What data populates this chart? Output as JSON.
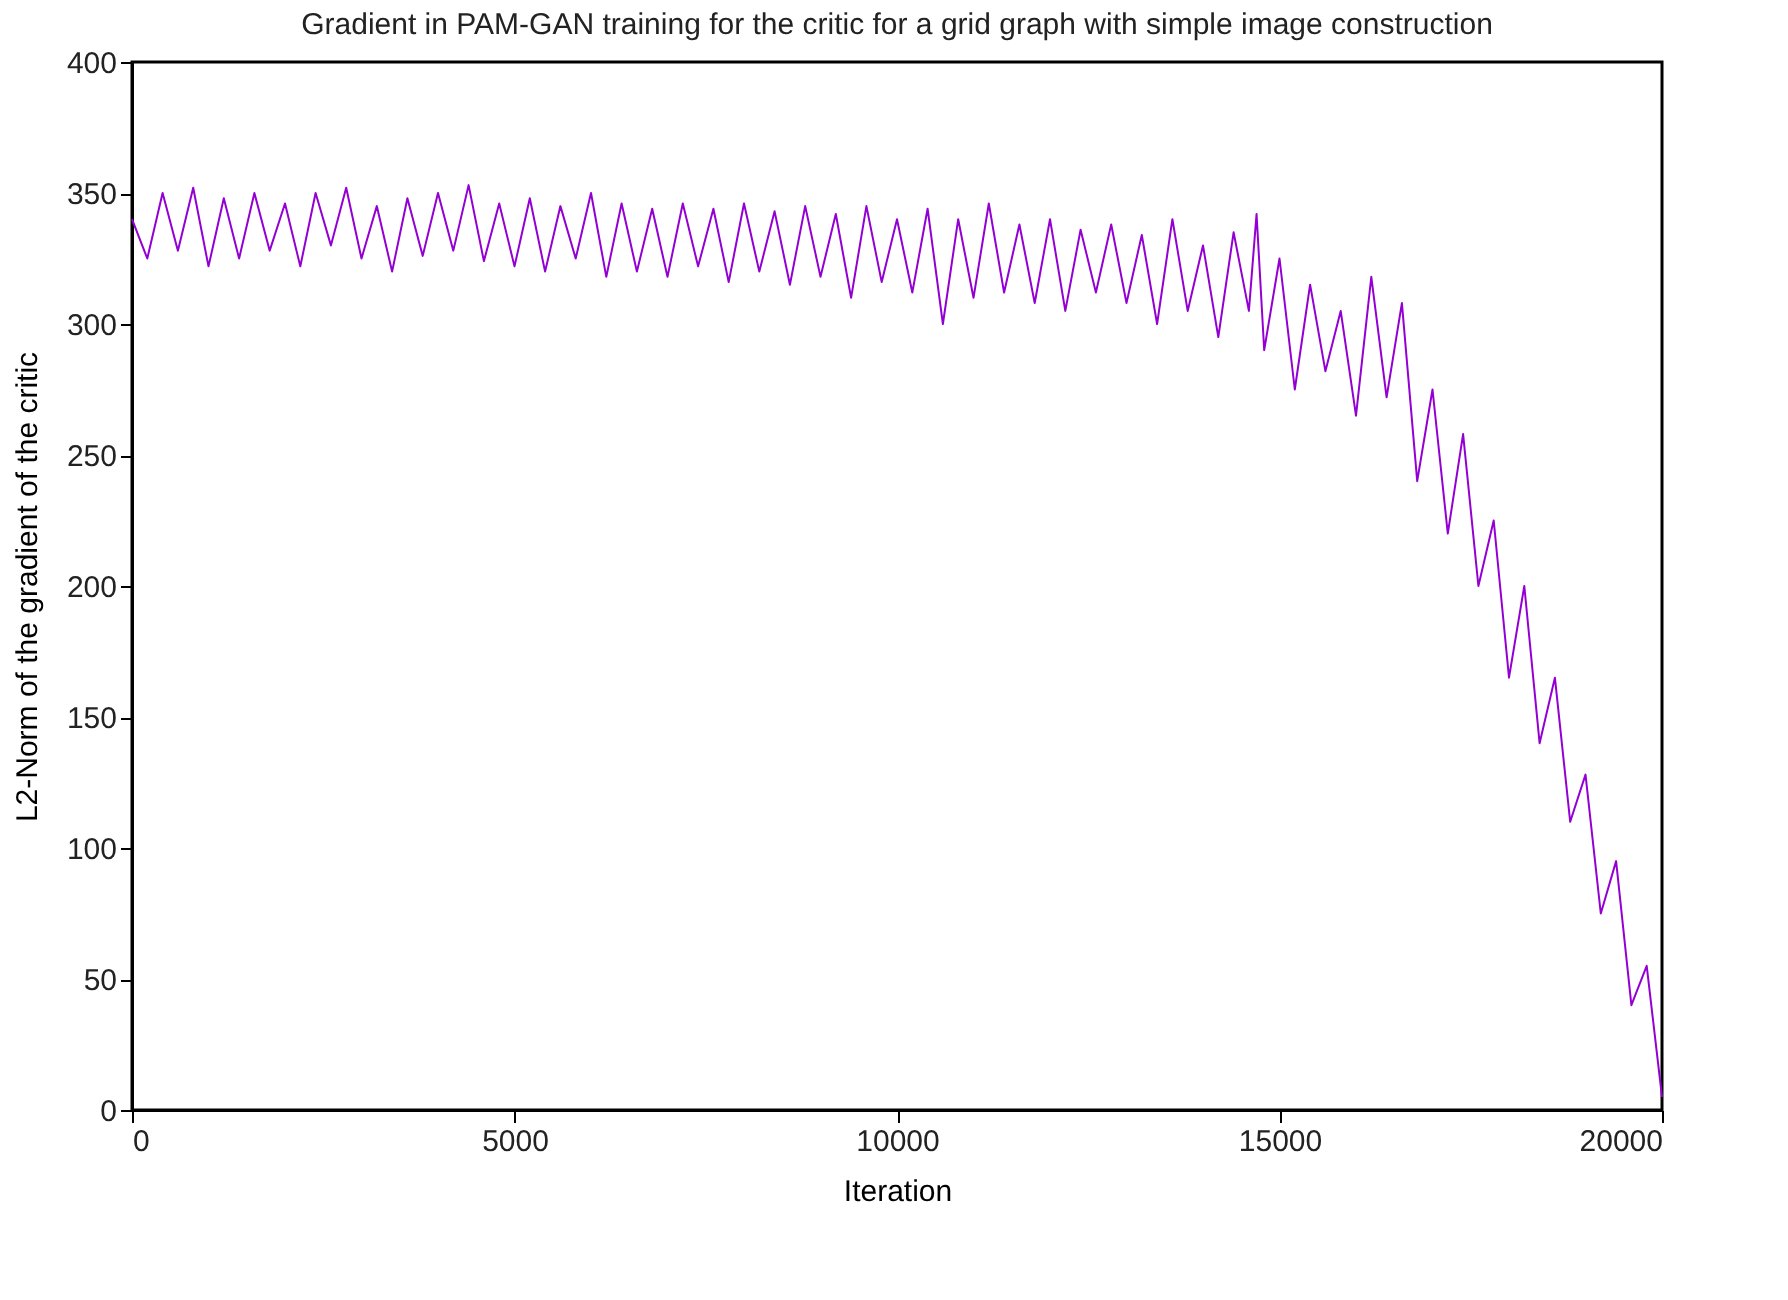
{
  "chart_data": {
    "type": "line",
    "title": "Gradient in PAM-GAN training for the critic for a grid graph with simple image construction",
    "xlabel": "Iteration",
    "ylabel": "L2-Norm of the gradient of the critic",
    "x": [
      0,
      200,
      400,
      600,
      800,
      1000,
      1200,
      1400,
      1600,
      1800,
      2000,
      2200,
      2400,
      2600,
      2800,
      3000,
      3200,
      3400,
      3600,
      3800,
      4000,
      4200,
      4400,
      4600,
      4800,
      5000,
      5200,
      5400,
      5600,
      5800,
      6000,
      6200,
      6400,
      6600,
      6800,
      7000,
      7200,
      7400,
      7600,
      7800,
      8000,
      8200,
      8400,
      8600,
      8800,
      9000,
      9200,
      9400,
      9600,
      9800,
      10000,
      10200,
      10400,
      10600,
      10800,
      11000,
      11200,
      11400,
      11600,
      11800,
      12000,
      12200,
      12400,
      12600,
      12800,
      13000,
      13200,
      13400,
      13600,
      13800,
      14000,
      14200,
      14400,
      14600,
      14700,
      14800,
      15000,
      15200,
      15400,
      15600,
      15800,
      16000,
      16200,
      16400,
      16600,
      16800,
      17000,
      17200,
      17400,
      17600,
      17800,
      18000,
      18200,
      18400,
      18600,
      18800,
      19000,
      19200,
      19400,
      19600,
      19800,
      20000
    ],
    "series": [
      {
        "color": "#9400d3",
        "values": [
          340,
          325,
          350,
          328,
          352,
          322,
          348,
          325,
          350,
          328,
          346,
          322,
          350,
          330,
          352,
          325,
          345,
          320,
          348,
          326,
          350,
          328,
          353,
          324,
          346,
          322,
          348,
          320,
          345,
          325,
          350,
          318,
          346,
          320,
          344,
          318,
          346,
          322,
          344,
          316,
          346,
          320,
          343,
          315,
          345,
          318,
          342,
          310,
          345,
          316,
          340,
          312,
          344,
          300,
          340,
          310,
          346,
          312,
          338,
          308,
          340,
          305,
          336,
          312,
          338,
          308,
          334,
          300,
          340,
          305,
          330,
          295,
          335,
          305,
          342,
          290,
          325,
          275,
          315,
          282,
          305,
          265,
          318,
          272,
          308,
          240,
          275,
          220,
          258,
          200,
          225,
          165,
          200,
          140,
          165,
          110,
          128,
          75,
          95,
          40,
          55,
          5
        ]
      }
    ],
    "xlim": [
      0,
      20000
    ],
    "xticks": [
      0,
      5000,
      10000,
      15000,
      20000
    ],
    "ylim": [
      0,
      400
    ],
    "yticks": [
      0,
      50,
      100,
      150,
      200,
      250,
      300,
      350,
      400
    ],
    "grid": false,
    "legend": false,
    "marker": "none",
    "line_style": "solid"
  }
}
